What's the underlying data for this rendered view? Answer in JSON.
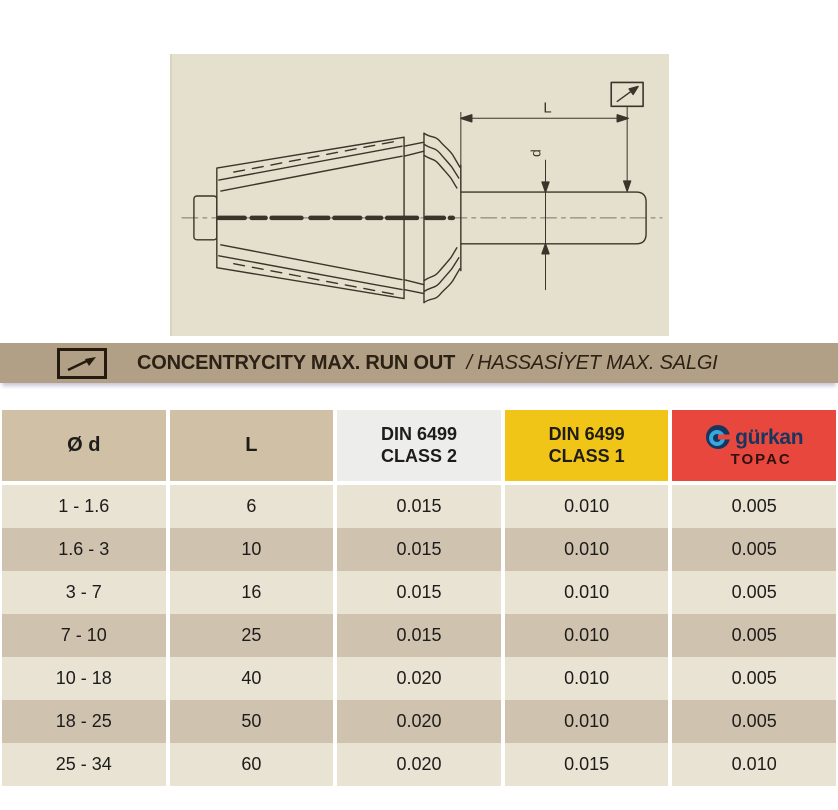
{
  "drawing": {
    "length_label": "L",
    "diameter_label": "d",
    "background_color": "#e5dfce",
    "line_color": "#3a352a"
  },
  "title_bar": {
    "icon": "concentricity-runout-symbol",
    "title_en": "CONCENTRYCITY MAX. RUN OUT",
    "title_tr": "/ HASSASİYET MAX. SALGI",
    "background_color": "#b1a085"
  },
  "table": {
    "columns": [
      {
        "label": "Ø d",
        "bg": "#cfc0a6"
      },
      {
        "label": "L",
        "bg": "#cfc0a6"
      },
      {
        "label_line1": "DIN 6499",
        "label_line2": "CLASS 2",
        "bg": "#ededec"
      },
      {
        "label_line1": "DIN 6499",
        "label_line2": "CLASS 1",
        "bg": "#f1c517"
      },
      {
        "brand": "gürkan",
        "sub": "TOPAC",
        "bg": "#e8473e",
        "brand_color": "#16365f"
      }
    ],
    "rows": [
      [
        "1 - 1.6",
        "6",
        "0.015",
        "0.010",
        "0.005"
      ],
      [
        "1.6 - 3",
        "10",
        "0.015",
        "0.010",
        "0.005"
      ],
      [
        "3 - 7",
        "16",
        "0.015",
        "0.010",
        "0.005"
      ],
      [
        "7 - 10",
        "25",
        "0.015",
        "0.010",
        "0.005"
      ],
      [
        "10 - 18",
        "40",
        "0.020",
        "0.010",
        "0.005"
      ],
      [
        "18 - 25",
        "50",
        "0.020",
        "0.010",
        "0.005"
      ],
      [
        "25 - 34",
        "60",
        "0.020",
        "0.015",
        "0.010"
      ]
    ],
    "row_colors": {
      "light": "#e9e3d4",
      "dark": "#cfc3b0"
    }
  }
}
